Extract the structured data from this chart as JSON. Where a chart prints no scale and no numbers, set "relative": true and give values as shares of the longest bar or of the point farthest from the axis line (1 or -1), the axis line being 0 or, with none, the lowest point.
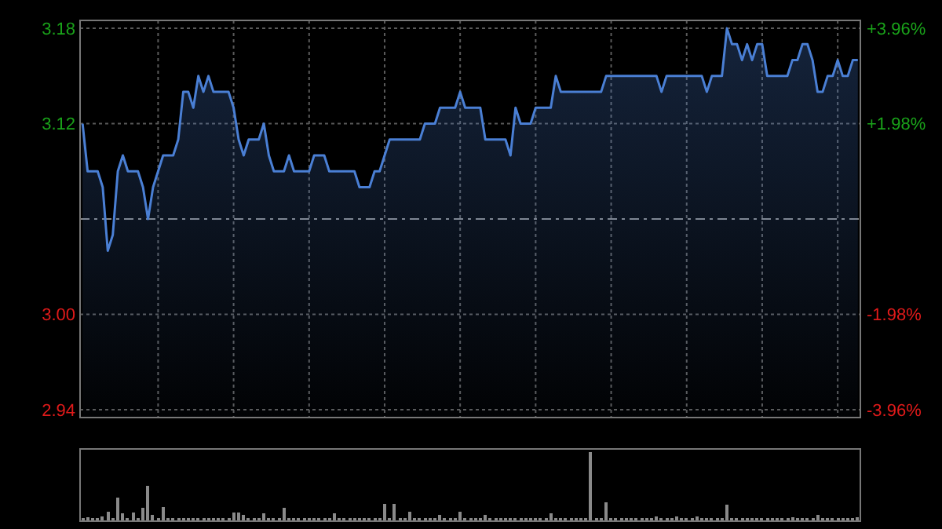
{
  "chart_data": [
    {
      "type": "area",
      "categories": [
        null,
        null,
        null,
        null,
        null,
        null,
        null,
        null,
        null,
        null,
        null,
        null,
        null,
        null,
        null,
        null,
        null,
        null,
        null,
        null,
        null,
        null,
        null,
        null,
        null,
        null,
        null,
        null,
        null,
        null,
        null,
        null,
        null,
        null,
        null,
        null,
        null,
        null,
        null,
        null,
        null,
        null,
        null,
        null,
        null,
        null,
        null,
        null,
        null,
        null,
        null,
        null,
        null,
        null,
        null,
        null,
        null,
        null,
        null,
        null,
        null,
        null,
        null,
        null,
        null,
        null,
        null,
        null,
        null,
        null,
        null,
        null,
        null,
        null,
        null,
        null,
        null,
        null,
        null,
        null,
        null,
        null,
        null,
        null,
        null,
        null,
        null,
        null,
        null,
        null,
        null,
        null,
        null,
        null,
        null,
        null,
        null,
        null,
        null,
        null,
        null,
        null,
        null,
        null,
        null,
        null,
        null,
        null,
        null,
        null,
        null,
        null,
        null,
        null,
        null,
        null,
        null,
        null,
        null,
        null,
        null,
        null,
        null,
        null,
        null,
        null,
        null,
        null,
        null,
        null,
        null,
        null,
        null,
        null,
        null,
        null,
        null,
        null,
        null,
        null,
        null,
        null,
        null,
        null,
        null,
        null,
        null,
        null,
        null,
        null,
        null,
        null,
        null,
        null,
        null
      ],
      "series": [
        {
          "color": "#4a7fd4",
          "values": [
            3.12,
            3.09,
            3.09,
            3.09,
            3.08,
            3.04,
            3.05,
            3.09,
            3.1,
            3.09,
            3.09,
            3.09,
            3.08,
            3.06,
            3.08,
            3.09,
            3.1,
            3.1,
            3.1,
            3.11,
            3.14,
            3.14,
            3.13,
            3.15,
            3.14,
            3.15,
            3.14,
            3.14,
            3.14,
            3.14,
            3.13,
            3.11,
            3.1,
            3.11,
            3.11,
            3.11,
            3.12,
            3.1,
            3.09,
            3.09,
            3.09,
            3.1,
            3.09,
            3.09,
            3.09,
            3.09,
            3.1,
            3.1,
            3.1,
            3.09,
            3.09,
            3.09,
            3.09,
            3.09,
            3.09,
            3.08,
            3.08,
            3.08,
            3.09,
            3.09,
            3.1,
            3.11,
            3.11,
            3.11,
            3.11,
            3.11,
            3.11,
            3.11,
            3.12,
            3.12,
            3.12,
            3.13,
            3.13,
            3.13,
            3.13,
            3.14,
            3.13,
            3.13,
            3.13,
            3.13,
            3.11,
            3.11,
            3.11,
            3.11,
            3.11,
            3.1,
            3.13,
            3.12,
            3.12,
            3.12,
            3.13,
            3.13,
            3.13,
            3.13,
            3.15,
            3.14,
            3.14,
            3.14,
            3.14,
            3.14,
            3.14,
            3.14,
            3.14,
            3.14,
            3.15,
            3.15,
            3.15,
            3.15,
            3.15,
            3.15,
            3.15,
            3.15,
            3.15,
            3.15,
            3.15,
            3.14,
            3.15,
            3.15,
            3.15,
            3.15,
            3.15,
            3.15,
            3.15,
            3.15,
            3.14,
            3.15,
            3.15,
            3.15,
            3.18,
            3.17,
            3.17,
            3.16,
            3.17,
            3.16,
            3.17,
            3.17,
            3.15,
            3.15,
            3.15,
            3.15,
            3.15,
            3.16,
            3.16,
            3.17,
            3.17,
            3.16,
            3.14,
            3.14,
            3.15,
            3.15,
            3.16,
            3.15,
            3.15,
            3.16,
            3.16
          ]
        }
      ],
      "ylim": [
        2.935,
        3.185
      ],
      "yticks": [
        {
          "value": 3.18,
          "label": "3.18"
        },
        {
          "value": 3.12,
          "label": "3.12"
        },
        {
          "value": 3.0,
          "label": "3.00"
        },
        {
          "value": 2.94,
          "label": "2.94"
        }
      ],
      "y2lim": [
        -4.125,
        4.125
      ],
      "y2ticks": [
        {
          "value": 3.96,
          "label": "+3.96%"
        },
        {
          "value": 1.98,
          "label": "+1.98%"
        },
        {
          "value": -1.98,
          "label": "-1.98%"
        },
        {
          "value": -3.96,
          "label": "-3.96%"
        }
      ],
      "ref_lines": [
        {
          "axis": "y",
          "value": 3.06,
          "line_style": "dashed"
        }
      ],
      "grid": true
    },
    {
      "type": "bar",
      "relative": true,
      "categories": [
        null,
        null,
        null,
        null,
        null,
        null,
        null,
        null,
        null,
        null,
        null,
        null,
        null,
        null,
        null,
        null,
        null,
        null,
        null,
        null,
        null,
        null,
        null,
        null,
        null,
        null,
        null,
        null,
        null,
        null,
        null,
        null,
        null,
        null,
        null,
        null,
        null,
        null,
        null,
        null,
        null,
        null,
        null,
        null,
        null,
        null,
        null,
        null,
        null,
        null,
        null,
        null,
        null,
        null,
        null,
        null,
        null,
        null,
        null,
        null,
        null,
        null,
        null,
        null,
        null,
        null,
        null,
        null,
        null,
        null,
        null,
        null,
        null,
        null,
        null,
        null,
        null,
        null,
        null,
        null,
        null,
        null,
        null,
        null,
        null,
        null,
        null,
        null,
        null,
        null,
        null,
        null,
        null,
        null,
        null,
        null,
        null,
        null,
        null,
        null,
        null,
        null,
        null,
        null,
        null,
        null,
        null,
        null,
        null,
        null,
        null,
        null,
        null,
        null,
        null,
        null,
        null,
        null,
        null,
        null,
        null,
        null,
        null,
        null,
        null,
        null,
        null,
        null,
        null,
        null,
        null,
        null,
        null,
        null,
        null,
        null,
        null,
        null,
        null,
        null,
        null,
        null,
        null,
        null,
        null,
        null,
        null,
        null,
        null,
        null,
        null,
        null,
        null,
        null,
        null
      ],
      "series": [
        {
          "color": "#8a8a8a",
          "values": [
            0.04,
            0.06,
            0.04,
            0.04,
            0.07,
            0.14,
            0.04,
            0.34,
            0.11,
            0.04,
            0.12,
            0.04,
            0.19,
            0.51,
            0.09,
            0.04,
            0.21,
            0.04,
            0.04,
            0.05,
            0.05,
            0.04,
            0.05,
            0.04,
            0.04,
            0.04,
            0.04,
            0.05,
            0.04,
            0.04,
            0.13,
            0.12,
            0.09,
            0.04,
            0.04,
            0.04,
            0.11,
            0.04,
            0.04,
            0.04,
            0.19,
            0.04,
            0.04,
            0.04,
            0.04,
            0.04,
            0.04,
            0.04,
            0.04,
            0.04,
            0.11,
            0.04,
            0.04,
            0.04,
            0.04,
            0.04,
            0.04,
            0.04,
            0.04,
            0.04,
            0.25,
            0.04,
            0.25,
            0.04,
            0.04,
            0.14,
            0.04,
            0.04,
            0.04,
            0.04,
            0.04,
            0.09,
            0.04,
            0.04,
            0.04,
            0.14,
            0.04,
            0.04,
            0.04,
            0.04,
            0.09,
            0.04,
            0.05,
            0.04,
            0.04,
            0.04,
            0.04,
            0.04,
            0.04,
            0.04,
            0.04,
            0.04,
            0.04,
            0.11,
            0.04,
            0.04,
            0.04,
            0.04,
            0.04,
            0.05,
            0.04,
            1.0,
            0.04,
            0.04,
            0.27,
            0.04,
            0.04,
            0.04,
            0.04,
            0.04,
            0.04,
            0.04,
            0.04,
            0.04,
            0.07,
            0.04,
            0.04,
            0.04,
            0.07,
            0.04,
            0.04,
            0.04,
            0.07,
            0.04,
            0.04,
            0.04,
            0.04,
            0.04,
            0.24,
            0.04,
            0.04,
            0.04,
            0.04,
            0.04,
            0.04,
            0.04,
            0.04,
            0.04,
            0.04,
            0.04,
            0.04,
            0.06,
            0.04,
            0.04,
            0.04,
            0.04,
            0.09,
            0.04,
            0.04,
            0.05,
            0.04,
            0.04,
            0.04,
            0.04,
            0.06
          ]
        }
      ]
    }
  ]
}
